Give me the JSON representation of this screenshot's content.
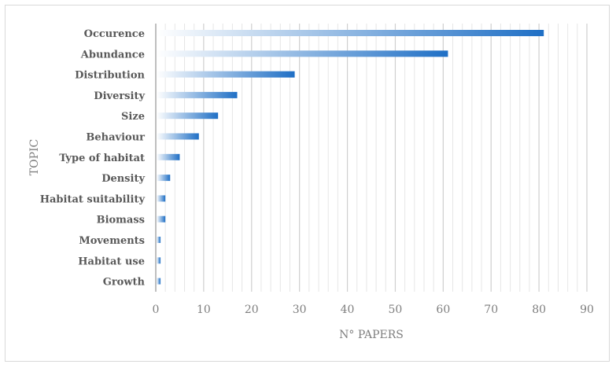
{
  "chart_data": {
    "type": "bar",
    "orientation": "horizontal",
    "categories": [
      "Occurence",
      "Abundance",
      "Distribution",
      "Diversity",
      "Size",
      "Behaviour",
      "Type of habitat",
      "Density",
      "Habitat suitability",
      "Biomass",
      "Movements",
      "Habitat use",
      "Growth"
    ],
    "values": [
      81,
      61,
      29,
      17,
      13,
      9,
      5,
      3,
      2,
      2,
      1,
      1,
      1
    ],
    "xlabel": "N° PAPERS",
    "ylabel": "TOPIC",
    "xlim": [
      0,
      90
    ],
    "xticks": [
      0,
      10,
      20,
      30,
      40,
      50,
      60,
      70,
      80,
      90
    ],
    "grid": true,
    "bar_color": "#1f6fc5"
  }
}
